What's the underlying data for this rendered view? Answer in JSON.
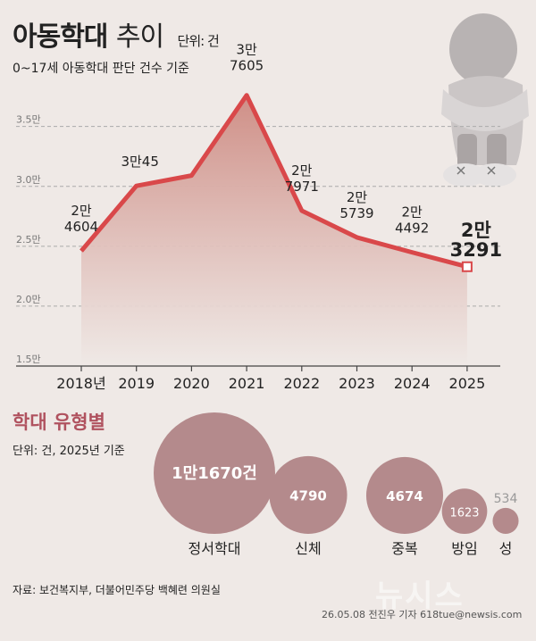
{
  "header": {
    "title_bold": "아동학대",
    "title_light": "추이",
    "unit": "단위: 건",
    "subtitle": "0~17세 아동학대 판단 건수 기준"
  },
  "chart_data": [
    {
      "type": "area",
      "categories": [
        "2018년",
        "2019",
        "2020",
        "2021",
        "2022",
        "2023",
        "2024",
        "2025"
      ],
      "values": [
        24604,
        30045,
        30905,
        37605,
        27971,
        25739,
        24492,
        23291
      ],
      "value_labels": [
        [
          "2만",
          "4604"
        ],
        [
          "3만45"
        ],
        [],
        [
          "3만",
          "7605"
        ],
        [
          "2만",
          "7971"
        ],
        [
          "2만",
          "5739"
        ],
        [
          "2만",
          "4492"
        ],
        [
          "2만",
          "3291"
        ]
      ],
      "yticks": [
        15000,
        20000,
        25000,
        30000,
        35000
      ],
      "ytick_labels": [
        "1.5만",
        "2.0만",
        "2.5만",
        "3.0만",
        "3.5만"
      ],
      "ylim": [
        15000,
        39000
      ],
      "grid": true,
      "colors": {
        "line": "#d9484a",
        "fill_top": "#cf8f87",
        "fill_bottom": "#efe9e6"
      }
    },
    {
      "type": "bubble",
      "title": "학대 유형별",
      "unit": "단위: 건, 2025년 기준",
      "categories": [
        "정서학대",
        "신체",
        "중복",
        "방임",
        "성"
      ],
      "values": [
        11670,
        4790,
        4674,
        1623,
        534
      ],
      "value_labels": [
        "1만1670건",
        "4790",
        "4674",
        "1623",
        "534"
      ],
      "colors": {
        "bubble": "#b48a8c",
        "text": "#ffffff"
      }
    }
  ],
  "footer": {
    "source": "자료: 보건복지부, 더불어민주당 백혜련 의원실",
    "credit": "26.05.08 전진우 기자 618tue@newsis.com",
    "watermark": "뉴시스"
  }
}
